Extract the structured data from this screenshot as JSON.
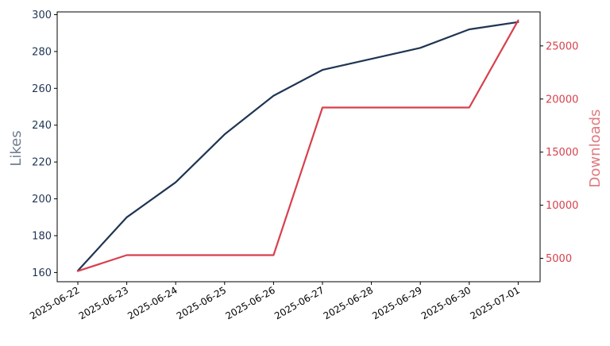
{
  "chart_data": {
    "type": "line",
    "title": "",
    "x": [
      "2025-06-22",
      "2025-06-23",
      "2025-06-24",
      "2025-06-25",
      "2025-06-26",
      "2025-06-27",
      "2025-06-28",
      "2025-06-29",
      "2025-06-30",
      "2025-07-01"
    ],
    "xlabel": "",
    "y_left": {
      "label": "Likes",
      "color": "#1f3553",
      "lim": [
        155,
        301.5
      ],
      "ticks": [
        160,
        180,
        200,
        220,
        240,
        260,
        280,
        300
      ]
    },
    "y_right": {
      "label": "Downloads",
      "color": "#d7404c",
      "lim": [
        2800,
        28200
      ],
      "ticks": [
        5000,
        10000,
        15000,
        20000,
        25000
      ]
    },
    "series": [
      {
        "axis": "left",
        "color": "#1f3553",
        "values": [
          161,
          190,
          209,
          235,
          256,
          270,
          276,
          282,
          292,
          296
        ]
      },
      {
        "axis": "right",
        "color": "#d7404c",
        "values": [
          3800,
          5300,
          5300,
          5300,
          5300,
          19200,
          19200,
          19200,
          19200,
          27400
        ]
      }
    ],
    "grid": false,
    "legend": "none"
  }
}
